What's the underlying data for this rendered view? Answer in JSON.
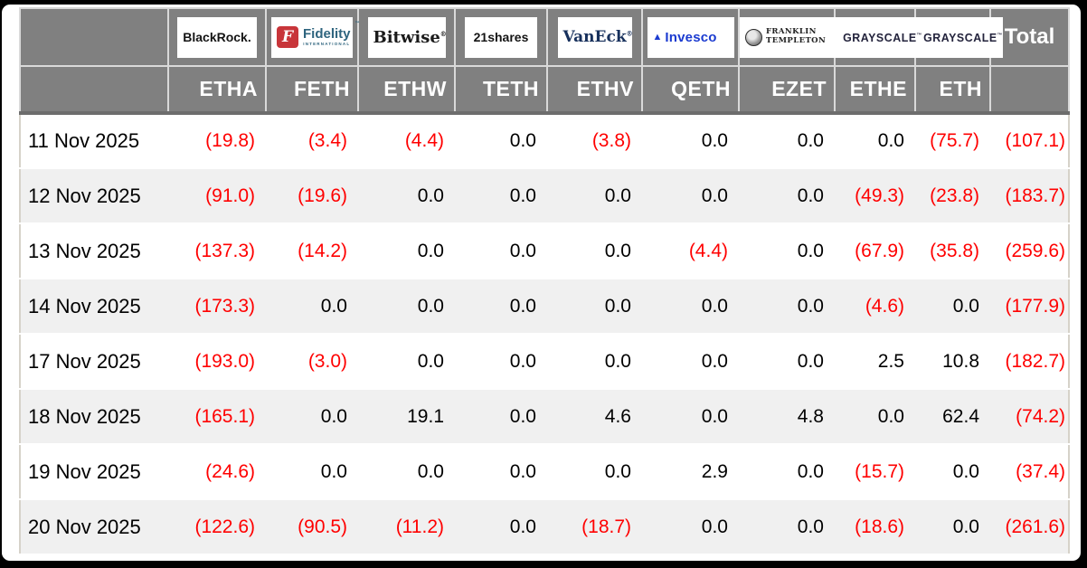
{
  "colors": {
    "header_bg": "#808080",
    "header_text": "#ffffff",
    "negative_value": "#ff0000",
    "positive_value": "#000000",
    "row_alt_bg": "#f0f0f0",
    "cell_border": "#d9d9d9",
    "frame": "#000000"
  },
  "table": {
    "total_label": "Total",
    "providers": [
      {
        "id": "blackrock",
        "name": "BlackRock",
        "ticker": "ETHA",
        "logo_text": "BlackRock."
      },
      {
        "id": "fidelity",
        "name": "Fidelity",
        "ticker": "FETH",
        "f_mark": "F",
        "logo_text": "Fidelity",
        "sub_text": "INTERNATIONAL",
        "tm": "™"
      },
      {
        "id": "bitwise",
        "name": "Bitwise",
        "ticker": "ETHW",
        "logo_text": "Bitwise",
        "reg": "®"
      },
      {
        "id": "shares21",
        "name": "21Shares",
        "ticker": "TETH",
        "logo_text": "21shares"
      },
      {
        "id": "vaneck",
        "name": "VanEck",
        "ticker": "ETHV",
        "logo_text": "VanEck",
        "reg": "®"
      },
      {
        "id": "invesco",
        "name": "Invesco",
        "ticker": "QETH",
        "logo_text": "Invesco",
        "mark": "▲"
      },
      {
        "id": "franklin",
        "name": "Franklin Templeton",
        "ticker": "EZET",
        "line1": "FRANKLIN",
        "line2": "TEMPLETON"
      },
      {
        "id": "grayscale",
        "name": "Grayscale",
        "ticker": "ETHE",
        "logo_text": "GRAYSCALE",
        "tm": "™"
      },
      {
        "id": "grayscale2",
        "name": "Grayscale",
        "ticker": "ETH",
        "logo_text": "GRAYSCALE",
        "tm": "™"
      }
    ],
    "rows": [
      {
        "date": "11 Nov 2025",
        "values": [
          "(19.8)",
          "(3.4)",
          "(4.4)",
          "0.0",
          "(3.8)",
          "0.0",
          "0.0",
          "0.0",
          "(75.7)"
        ],
        "total": "(107.1)"
      },
      {
        "date": "12 Nov 2025",
        "values": [
          "(91.0)",
          "(19.6)",
          "0.0",
          "0.0",
          "0.0",
          "0.0",
          "0.0",
          "(49.3)",
          "(23.8)"
        ],
        "total": "(183.7)"
      },
      {
        "date": "13 Nov 2025",
        "values": [
          "(137.3)",
          "(14.2)",
          "0.0",
          "0.0",
          "0.0",
          "(4.4)",
          "0.0",
          "(67.9)",
          "(35.8)"
        ],
        "total": "(259.6)"
      },
      {
        "date": "14 Nov 2025",
        "values": [
          "(173.3)",
          "0.0",
          "0.0",
          "0.0",
          "0.0",
          "0.0",
          "0.0",
          "(4.6)",
          "0.0"
        ],
        "total": "(177.9)"
      },
      {
        "date": "17 Nov 2025",
        "values": [
          "(193.0)",
          "(3.0)",
          "0.0",
          "0.0",
          "0.0",
          "0.0",
          "0.0",
          "2.5",
          "10.8"
        ],
        "total": "(182.7)"
      },
      {
        "date": "18 Nov 2025",
        "values": [
          "(165.1)",
          "0.0",
          "19.1",
          "0.0",
          "4.6",
          "0.0",
          "4.8",
          "0.0",
          "62.4"
        ],
        "total": "(74.2)"
      },
      {
        "date": "19 Nov 2025",
        "values": [
          "(24.6)",
          "0.0",
          "0.0",
          "0.0",
          "0.0",
          "2.9",
          "0.0",
          "(15.7)",
          "0.0"
        ],
        "total": "(37.4)"
      },
      {
        "date": "20 Nov 2025",
        "values": [
          "(122.6)",
          "(90.5)",
          "(11.2)",
          "0.0",
          "(18.7)",
          "0.0",
          "0.0",
          "(18.6)",
          "0.0"
        ],
        "total": "(261.6)"
      }
    ]
  }
}
